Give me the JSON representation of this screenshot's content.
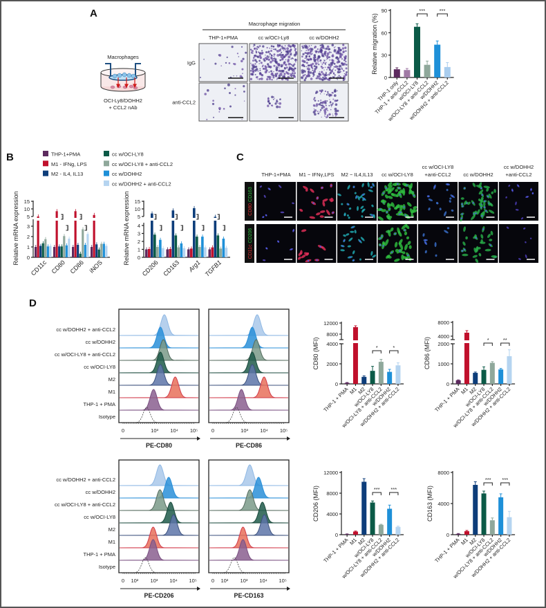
{
  "panels": {
    "a": "A",
    "b": "B",
    "c": "C",
    "d": "D"
  },
  "panel_a": {
    "schematic": {
      "top_label": "Macrophages",
      "bottom_line1": "OCI-Ly8/DOHH2",
      "bottom_line2": "+ CCL2 nAb"
    },
    "micrograph_title": "Macrophage migration",
    "columns": [
      "THP-1+PMA",
      "cc w/OCI-Ly8",
      "cc w/DOHH2"
    ],
    "rows": [
      "IgG",
      "anti-CCL2"
    ]
  },
  "panel_b": {
    "legend": [
      "THP-1+PMA",
      "M1 - IFNg, LPS",
      "M2 - IL4, IL13",
      "cc w/OCI-LY8",
      "cc w/OCI-LY8 + anti-CCL2",
      "cc w/DOHH2",
      "cc w/DOHH2 + anti-CCL2"
    ]
  },
  "panel_c": {
    "columns": [
      [
        "THP-1+PMA",
        ""
      ],
      [
        "M1 − IFNγ,LPS",
        ""
      ],
      [
        "M2 − IL4,IL13",
        ""
      ],
      [
        "cc w/OCI-LY8",
        ""
      ],
      [
        "cc w/OCI-LY8",
        "+anti-CCL2"
      ],
      [
        "cc w/DOHH2",
        ""
      ],
      [
        "cc w/DOHH2",
        "+anti-CCL2"
      ]
    ],
    "rows": [
      {
        "red": "CD80",
        "green": "CD163"
      },
      {
        "red": "CD11c",
        "green": "CD206"
      }
    ]
  },
  "panel_d_histograms": {
    "row_labels": [
      "Isotype",
      "THP-1 + PMA",
      "M1",
      "M2",
      "cc w/OCI-LY8",
      "cc w/OCI-LY8 + anti-CCL2",
      "cc w/DOHH2",
      "cc w/DOHH2 + anti-CCL2"
    ],
    "tick_labels_top": [
      "0",
      "10³",
      "10⁴",
      "10⁵"
    ],
    "tick_labels_bottom": [
      "0",
      "10²",
      "10³",
      "10⁴",
      "10⁵"
    ],
    "panels": [
      {
        "xlabel": "PE-CD80",
        "peaks_log10": [
          2.6,
          2.95,
          4.05,
          3.3,
          3.3,
          3.45,
          3.3,
          3.5
        ]
      },
      {
        "xlabel": "PE-CD86",
        "peaks_log10": [
          2.6,
          2.85,
          4.0,
          3.4,
          3.4,
          3.6,
          3.4,
          3.65
        ]
      },
      {
        "xlabel": "PE-CD206",
        "peaks_log10": [
          2.55,
          2.95,
          2.95,
          4.0,
          3.85,
          3.3,
          3.75,
          3.3
        ]
      },
      {
        "xlabel": "PE-CD163",
        "peaks_log10": [
          2.5,
          2.95,
          2.95,
          4.05,
          3.95,
          3.3,
          3.75,
          3.3
        ]
      }
    ],
    "fill_colors": [
      "none",
      "#8a5f8f",
      "#e8705a",
      "#5d74a8",
      "#1f5a4a",
      "#7a9a88",
      "#2a8fd8",
      "#a9c8ea"
    ],
    "line_colors": [
      "#555555",
      "#7a4f80",
      "#d23a4a",
      "#3d527e",
      "#1a4a3c",
      "#556b5e",
      "#2a8fd8",
      "#8fb8e4"
    ]
  },
  "chart_data": [
    {
      "id": "a-migration",
      "type": "bar",
      "title": "",
      "ylabel": "Relative migration (%)",
      "xlabel": "",
      "categories": [
        "THP-1 only",
        "THP-1 + anti-CCL2",
        "w/OCI-LY8",
        "w/OCI-LY8 + anti-CCL2",
        "w/DOHH2",
        "w/DOHH2 + anti-CCL2"
      ],
      "values": [
        11,
        10,
        68,
        17,
        44,
        14
      ],
      "errors": [
        2,
        2,
        4,
        5,
        5,
        6
      ],
      "colors": [
        "#5c2a5e",
        "#a07aa5",
        "#0b5a47",
        "#8fa89b",
        "#1e90d8",
        "#a9cdee"
      ],
      "ylim": [
        0,
        90
      ],
      "yticks": [
        0,
        30,
        60,
        90
      ],
      "significance": [
        {
          "pair": [
            2,
            3
          ],
          "label": "***"
        },
        {
          "pair": [
            4,
            5
          ],
          "label": "***"
        }
      ]
    },
    {
      "id": "b-m1",
      "type": "bar",
      "ylabel": "Relative mRNA expression",
      "categories": [
        "CD11c",
        "CD80",
        "CD86",
        "iNOS"
      ],
      "series": [
        {
          "name": "THP-1+PMA",
          "color": "#5c2a5e",
          "values": [
            1,
            1,
            1,
            1
          ]
        },
        {
          "name": "M1 - IFNg, LPS",
          "color": "#c0102c",
          "values": [
            5,
            8.5,
            8.5,
            6
          ]
        },
        {
          "name": "M2 - IL4, IL13",
          "color": "#0d3d7a",
          "values": [
            1.1,
            1.05,
            1.2,
            1.25
          ]
        },
        {
          "name": "cc w/OCI-LY8",
          "color": "#0b5a47",
          "values": [
            1.35,
            1.05,
            0.35,
            0.75
          ]
        },
        {
          "name": "cc w/OCI-LY8 + anti-CCL2",
          "color": "#8fa89b",
          "values": [
            1.75,
            2.05,
            2.7,
            1.3
          ]
        },
        {
          "name": "cc w/DOHH2",
          "color": "#1e90d8",
          "values": [
            1.05,
            1.15,
            1.2,
            1.3
          ]
        },
        {
          "name": "cc w/DOHH2 + anti-CCL2",
          "color": "#b5d4f0",
          "values": [
            1.1,
            1.8,
            2.25,
            1.1
          ]
        }
      ],
      "ylim_lower": [
        0,
        3
      ],
      "ylim_upper": [
        5,
        15
      ],
      "yticks": [
        0,
        1,
        2,
        3,
        5,
        10,
        15
      ],
      "significance": [
        {
          "category": 1,
          "label": "***"
        },
        {
          "category": 1,
          "label": "***"
        },
        {
          "category": 2,
          "label": "***"
        },
        {
          "category": 2,
          "label": "***"
        }
      ]
    },
    {
      "id": "b-m2",
      "type": "bar",
      "ylabel": "Relative mRNA expression",
      "categories": [
        "CD206",
        "CD163",
        "Arg1",
        "TGFB1"
      ],
      "series": [
        {
          "name": "THP-1+PMA",
          "color": "#5c2a5e",
          "values": [
            1,
            1,
            1,
            1
          ]
        },
        {
          "name": "M1 - IFNg, LPS",
          "color": "#c0102c",
          "values": [
            1.05,
            1.05,
            1.1,
            1.25
          ]
        },
        {
          "name": "M2 - IL4, IL13",
          "color": "#0d3d7a",
          "values": [
            7,
            9,
            10.5,
            4.8
          ]
        },
        {
          "name": "cc w/OCI-LY8",
          "color": "#0b5a47",
          "values": [
            2.85,
            2.75,
            2.6,
            2.75
          ]
        },
        {
          "name": "cc w/OCI-LY8 + anti-CCL2",
          "color": "#8fa89b",
          "values": [
            1.3,
            1.25,
            1.3,
            1.1
          ]
        },
        {
          "name": "cc w/DOHH2",
          "color": "#1e90d8",
          "values": [
            2.2,
            1.75,
            2.6,
            2.35
          ]
        },
        {
          "name": "cc w/DOHH2 + anti-CCL2",
          "color": "#b5d4f0",
          "values": [
            1.15,
            1.15,
            1.25,
            1.2
          ]
        }
      ],
      "ylim_lower": [
        0,
        4
      ],
      "ylim_upper": [
        5,
        15
      ],
      "yticks": [
        0,
        1,
        2,
        3,
        4,
        5,
        10,
        15
      ],
      "significance": [
        {
          "category": 0,
          "label": "***"
        },
        {
          "category": 0,
          "label": "***"
        },
        {
          "category": 1,
          "label": "***"
        },
        {
          "category": 1,
          "label": "***"
        },
        {
          "category": 2,
          "label": "***"
        },
        {
          "category": 2,
          "label": "***"
        },
        {
          "category": 3,
          "label": "***"
        },
        {
          "category": 3,
          "label": "***"
        }
      ]
    },
    {
      "id": "d-cd80",
      "type": "bar",
      "ylabel": "CD80 (MFI)",
      "categories": [
        "THP-1 + PMA",
        "M1",
        "M2",
        "w/OCI-LY8",
        "w/OCI-LY8 + anti-CCL2",
        "w/DOHH2",
        "w/DOHH2 + anti-CCL2"
      ],
      "values": [
        100,
        10500,
        700,
        1300,
        2200,
        1200,
        1850
      ],
      "errors": [
        40,
        500,
        100,
        450,
        250,
        250,
        250
      ],
      "ylim_lower": [
        0,
        4000
      ],
      "ylim_upper": [
        6000,
        12000
      ],
      "yticks": [
        0,
        2000,
        4000,
        8000,
        12000
      ],
      "significance": [
        {
          "pair": [
            3,
            4
          ],
          "label": "*"
        },
        {
          "pair": [
            5,
            6
          ],
          "label": "*"
        }
      ]
    },
    {
      "id": "d-cd86",
      "type": "bar",
      "ylabel": "CD86 (MFI)",
      "categories": [
        "THP-1 + PMA",
        "M1",
        "M2",
        "w/OCI-LY8",
        "w/OCI-LY8 + anti-CCL2",
        "w/DOHH2",
        "w/DOHH2 + anti-CCL2"
      ],
      "values": [
        180,
        5000,
        550,
        700,
        1050,
        720,
        1380
      ],
      "errors": [
        20,
        600,
        40,
        150,
        60,
        50,
        320
      ],
      "ylim_lower": [
        0,
        2000
      ],
      "ylim_upper": [
        3000,
        8000
      ],
      "yticks": [
        0,
        1000,
        2000,
        4000,
        8000
      ],
      "significance": [
        {
          "pair": [
            3,
            4
          ],
          "label": "*"
        },
        {
          "pair": [
            5,
            6
          ],
          "label": "**"
        }
      ]
    },
    {
      "id": "d-cd206",
      "type": "bar",
      "ylabel": "CD206 (MFI)",
      "categories": [
        "THP-1 + PMA",
        "M1",
        "M2",
        "w/OCI-LY8",
        "w/OCI-LY8 + anti-CCL2",
        "w/DOHH2",
        "w/DOHH2 + anti-CCL2"
      ],
      "values": [
        100,
        600,
        10200,
        6200,
        1900,
        5000,
        1500
      ],
      "errors": [
        50,
        100,
        600,
        300,
        100,
        700,
        150
      ],
      "ylim": [
        0,
        12000
      ],
      "yticks": [
        0,
        4000,
        8000,
        12000
      ],
      "significance": [
        {
          "pair": [
            3,
            4
          ],
          "label": "***"
        },
        {
          "pair": [
            5,
            6
          ],
          "label": "***"
        }
      ]
    },
    {
      "id": "d-cd163",
      "type": "bar",
      "ylabel": "CD163 (MFI)",
      "categories": [
        "THP-1 + PMA",
        "M1",
        "M2",
        "w/OCI-LY8",
        "w/OCI-LY8 + anti-CCL2",
        "w/DOHH2",
        "w/DOHH2 + anti-CCL2"
      ],
      "values": [
        100,
        450,
        6400,
        5300,
        1850,
        4800,
        2250
      ],
      "errors": [
        50,
        100,
        400,
        300,
        300,
        450,
        750
      ],
      "ylim": [
        0,
        8000
      ],
      "yticks": [
        0,
        4000,
        8000
      ],
      "significance": [
        {
          "pair": [
            3,
            4
          ],
          "label": "***"
        },
        {
          "pair": [
            5,
            6
          ],
          "label": "***"
        }
      ]
    }
  ]
}
